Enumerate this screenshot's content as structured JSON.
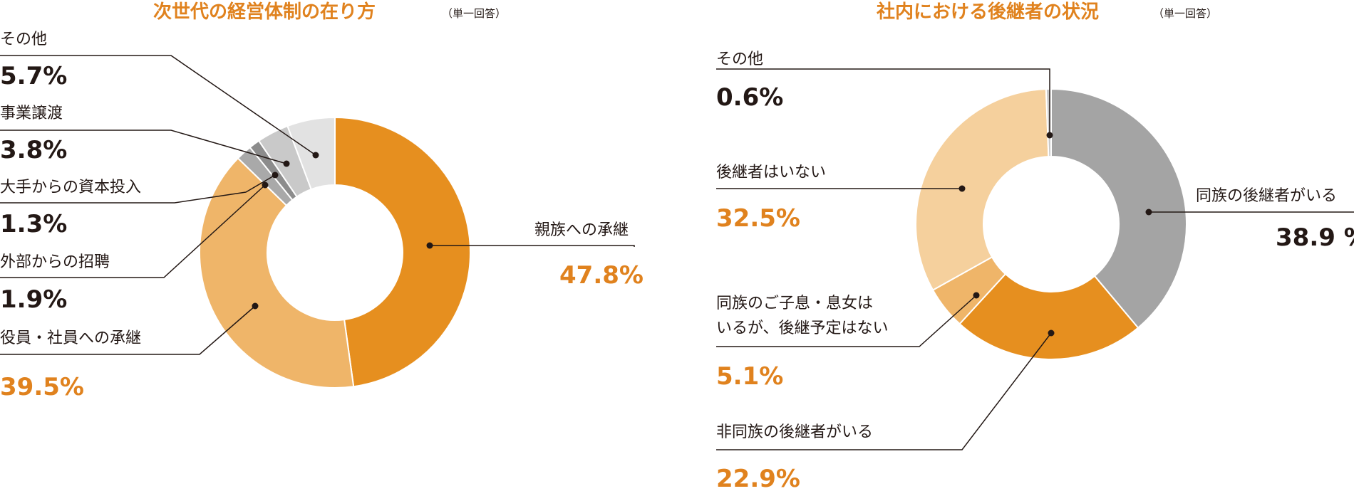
{
  "chart_data": [
    {
      "type": "pie",
      "title": "次世代の経営体制の在り方",
      "note": "（単一回答）",
      "slices": [
        {
          "label": "親族への承継",
          "value": 47.8,
          "display": "47.8%",
          "color": "#e68f1f"
        },
        {
          "label": "役員・社員への承継",
          "value": 39.5,
          "display": "39.5%",
          "color": "#efb569"
        },
        {
          "label": "外部からの招聘",
          "value": 1.9,
          "display": "1.9%",
          "color": "#a9a9a9"
        },
        {
          "label": "大手からの資本投入",
          "value": 1.3,
          "display": "1.3%",
          "color": "#8c8c8c"
        },
        {
          "label": "事業譲渡",
          "value": 3.8,
          "display": "3.8%",
          "color": "#c9c9c9"
        },
        {
          "label": "その他",
          "value": 5.7,
          "display": "5.7%",
          "color": "#e2e2e2"
        }
      ]
    },
    {
      "type": "pie",
      "title": "社内における後継者の状況",
      "note": "（単一回答）",
      "slices": [
        {
          "label": "同族の後継者がいる",
          "value": 38.9,
          "display": "38.9 %",
          "color": "#a4a4a4"
        },
        {
          "label": "非同族の後継者がいる",
          "value": 22.9,
          "display": "22.9%",
          "color": "#e68f1f"
        },
        {
          "label": "同族のご子息・息女はいるが、後継予定はない",
          "label_lines": [
            "同族のご子息・息女は",
            "いるが、後継予定はない"
          ],
          "value": 5.1,
          "display": "5.1%",
          "color": "#efb569"
        },
        {
          "label": "後継者はいない",
          "value": 32.5,
          "display": "32.5%",
          "color": "#f5d09d"
        },
        {
          "label": "その他",
          "value": 0.6,
          "display": "0.6%",
          "color": "#c9c9c9"
        }
      ]
    }
  ]
}
